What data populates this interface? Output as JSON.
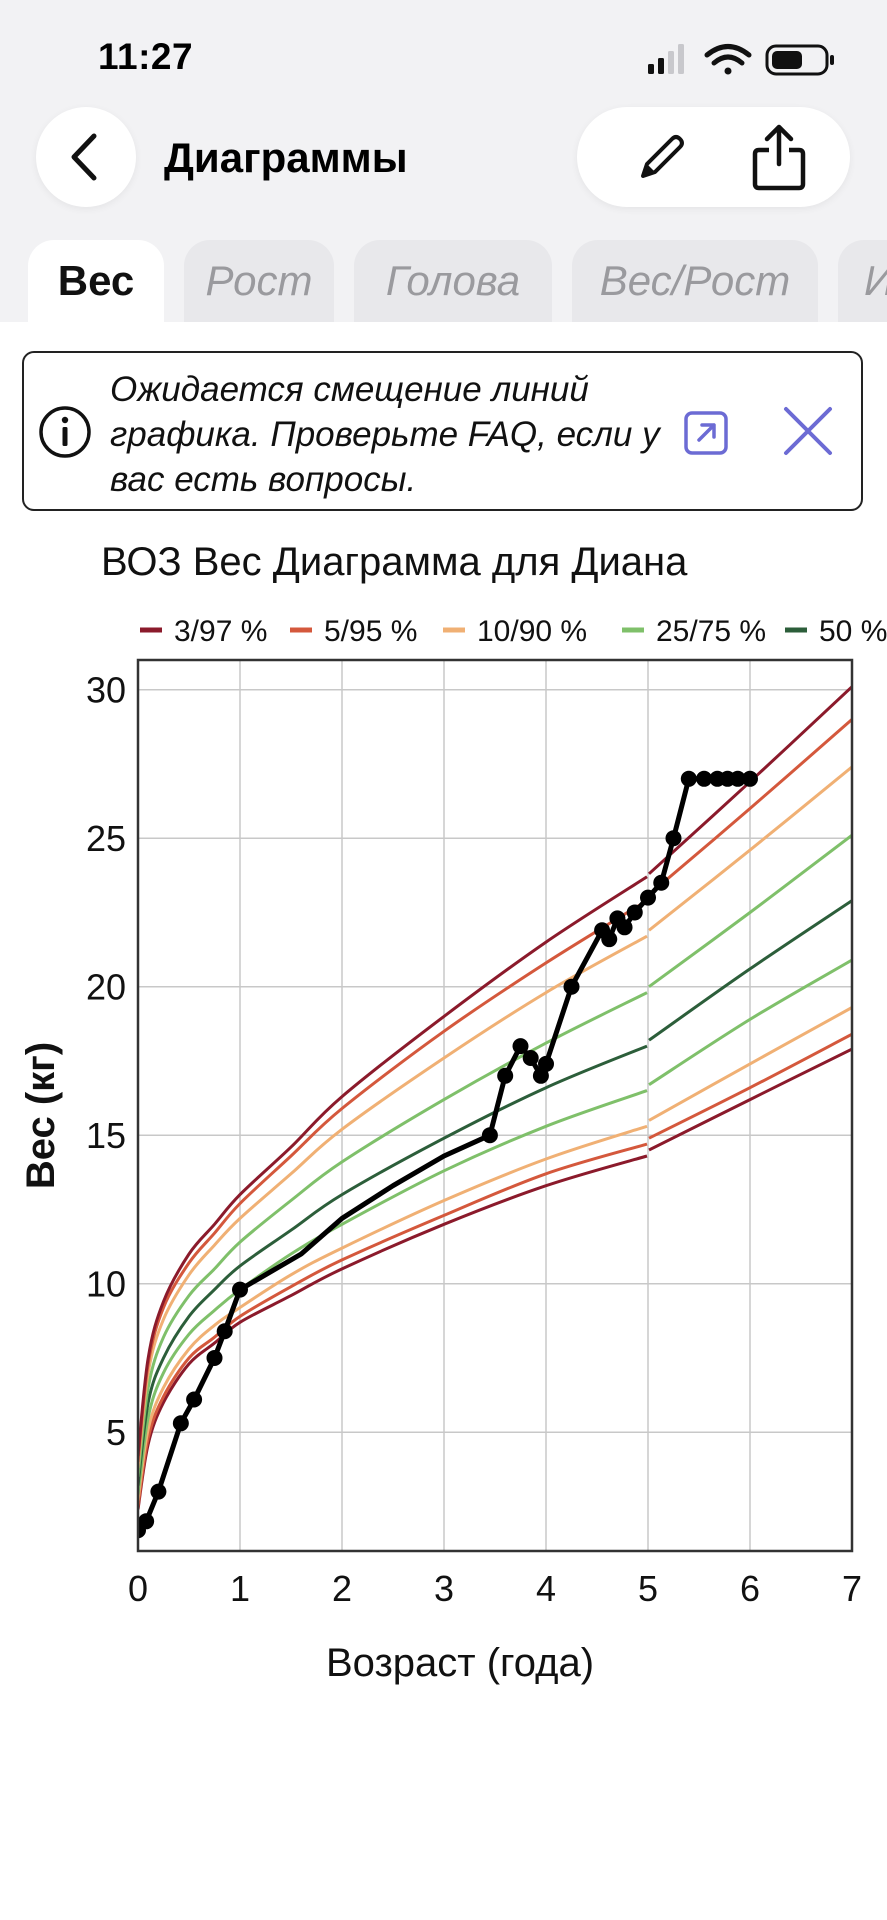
{
  "status_bar": {
    "time": "11:27"
  },
  "nav": {
    "title": "Диаграммы"
  },
  "tabs": [
    {
      "label": "Вес",
      "active": true
    },
    {
      "label": "Рост",
      "active": false
    },
    {
      "label": "Голова",
      "active": false
    },
    {
      "label": "Вес/Рост",
      "active": false
    },
    {
      "label": "И",
      "active": false
    }
  ],
  "banner": {
    "text": "Ожидается смещение линий графика. Проверьте FAQ, если у вас есть вопросы."
  },
  "colors": {
    "p3_97": "#8b1a2b",
    "p5_95": "#d4583c",
    "p10_90": "#f0b074",
    "p25_75": "#7fc06a",
    "p50": "#2c5e3a",
    "child": "#000000",
    "accent": "#6c6bd4"
  },
  "chart_data": {
    "type": "line",
    "title": "ВОЗ Вес Диаграмма для Диана",
    "xlabel": "Возраст (года)",
    "ylabel": "Вес (кг)",
    "xlim": [
      0,
      7
    ],
    "ylim": [
      1,
      31
    ],
    "xticks": [
      0,
      1,
      2,
      3,
      4,
      5,
      6,
      7
    ],
    "yticks": [
      5,
      10,
      15,
      20,
      25,
      30
    ],
    "grid": true,
    "legend_position": "top",
    "legend": [
      "3/97 %",
      "5/95 %",
      "10/90 %",
      "25/75 %",
      "50 %"
    ],
    "percentile_x": [
      0,
      0.1,
      0.25,
      0.5,
      0.75,
      1,
      1.5,
      2,
      3,
      4,
      4.99,
      5.01,
      6,
      7
    ],
    "series": [
      {
        "name": "3/97 %",
        "color_key": "p3_97",
        "values": [
          2.4,
          4.6,
          6.0,
          7.3,
          8.0,
          8.7,
          9.6,
          10.5,
          12.0,
          13.3,
          14.3,
          14.5,
          16.2,
          17.9
        ]
      },
      {
        "name": "5/95 %",
        "color_key": "p5_95",
        "values": [
          2.5,
          4.8,
          6.2,
          7.5,
          8.2,
          8.9,
          9.9,
          10.8,
          12.3,
          13.7,
          14.7,
          14.9,
          16.6,
          18.4
        ]
      },
      {
        "name": "10/90 %",
        "color_key": "p10_90",
        "values": [
          2.7,
          5.1,
          6.5,
          7.8,
          8.6,
          9.2,
          10.3,
          11.2,
          12.8,
          14.2,
          15.3,
          15.5,
          17.4,
          19.3
        ]
      },
      {
        "name": "25/75 %",
        "color_key": "p25_75",
        "values": [
          2.9,
          5.5,
          7.0,
          8.3,
          9.1,
          9.8,
          11.0,
          12.0,
          13.8,
          15.3,
          16.5,
          16.7,
          18.9,
          20.9
        ]
      },
      {
        "name": "50 %",
        "color_key": "p50",
        "values": [
          3.2,
          6.0,
          7.5,
          8.9,
          9.8,
          10.6,
          11.8,
          13.0,
          14.9,
          16.6,
          18.0,
          18.2,
          20.6,
          22.9
        ]
      },
      {
        "name": "25/75 %",
        "color_key": "p25_75",
        "values": [
          3.5,
          6.5,
          8.2,
          9.6,
          10.5,
          11.4,
          12.8,
          14.1,
          16.2,
          18.1,
          19.8,
          20.0,
          22.5,
          25.1
        ]
      },
      {
        "name": "10/90 %",
        "color_key": "p10_90",
        "values": [
          3.8,
          7.0,
          8.8,
          10.3,
          11.3,
          12.2,
          13.7,
          15.2,
          17.6,
          19.8,
          21.7,
          21.9,
          24.6,
          27.4
        ]
      },
      {
        "name": "5/95 %",
        "color_key": "p5_95",
        "values": [
          4.0,
          7.3,
          9.2,
          10.7,
          11.7,
          12.7,
          14.3,
          15.9,
          18.5,
          20.8,
          22.9,
          23.1,
          26.0,
          29.0
        ]
      },
      {
        "name": "3/97 %",
        "color_key": "p3_97",
        "values": [
          4.2,
          7.5,
          9.4,
          11.0,
          12.0,
          13.0,
          14.6,
          16.3,
          19.0,
          21.5,
          23.7,
          23.8,
          26.9,
          30.1
        ]
      }
    ],
    "child": {
      "points": [
        [
          0,
          1.7
        ],
        [
          0.08,
          2.0
        ],
        [
          0.2,
          3.0
        ],
        [
          0.42,
          5.3
        ],
        [
          0.55,
          6.1
        ],
        [
          0.75,
          7.5
        ],
        [
          0.85,
          8.4
        ],
        [
          1.0,
          9.8
        ],
        [
          3.45,
          15.0
        ],
        [
          3.6,
          17.0
        ],
        [
          3.75,
          18.0
        ],
        [
          3.85,
          17.6
        ],
        [
          3.95,
          17.0
        ],
        [
          4.0,
          17.4
        ],
        [
          4.25,
          20.0
        ],
        [
          4.55,
          21.9
        ],
        [
          4.62,
          21.6
        ],
        [
          4.7,
          22.3
        ],
        [
          4.77,
          22.0
        ],
        [
          4.87,
          22.5
        ],
        [
          5.0,
          23.0
        ],
        [
          5.13,
          23.5
        ],
        [
          5.25,
          25.0
        ],
        [
          5.4,
          27.0
        ],
        [
          5.55,
          27.0
        ],
        [
          5.68,
          27.0
        ],
        [
          5.78,
          27.0
        ],
        [
          5.88,
          27.0
        ],
        [
          6.0,
          27.0
        ]
      ],
      "path_only": [
        [
          1.6,
          11.0
        ],
        [
          2.0,
          12.2
        ],
        [
          2.5,
          13.3
        ],
        [
          3.0,
          14.3
        ]
      ]
    }
  }
}
